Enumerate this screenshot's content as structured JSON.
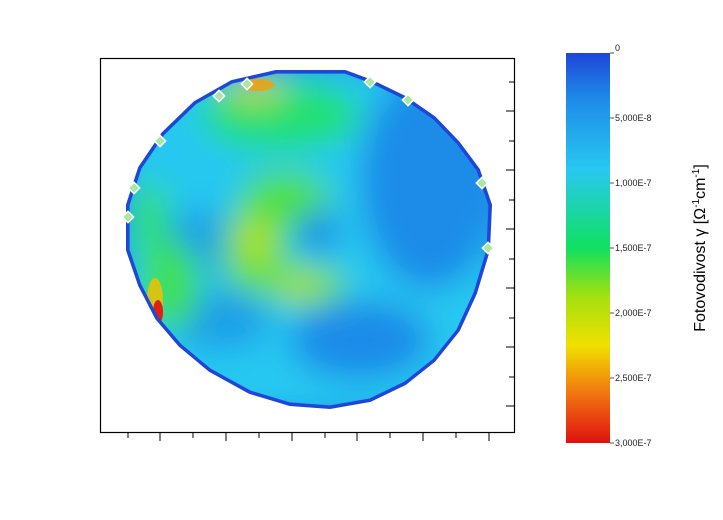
{
  "chart_data": {
    "type": "heatmap",
    "title": "",
    "xlabel": "",
    "ylabel": "",
    "x_tick_labels_visible": false,
    "y_tick_labels_visible": false,
    "colorbar": {
      "label_prefix": "Fotovodivost γ [Ω",
      "label_exp1": "-1",
      "label_mid": "cm",
      "label_exp2": "-1",
      "label_suffix": "]",
      "ticks": [
        "0",
        "5,000E-8",
        "1,000E-7",
        "1,500E-7",
        "2,000E-7",
        "2,500E-7",
        "3,000E-7"
      ],
      "range": [
        0,
        3e-07
      ],
      "orientation": "reversed",
      "colors": [
        "#1e46d8",
        "#1e8ce8",
        "#28c8f0",
        "#10e060",
        "#a0e010",
        "#f0e000",
        "#f07010",
        "#e01010"
      ]
    },
    "map_shape": "circular wafer",
    "hotspots": [
      {
        "region": "left edge, lower",
        "value": 3e-07
      },
      {
        "region": "top edge",
        "value": 2.5e-07
      },
      {
        "region": "center ring",
        "value": 1.7e-07
      },
      {
        "region": "center",
        "value": 6e-08
      },
      {
        "region": "right side",
        "value": 5e-08
      }
    ]
  }
}
